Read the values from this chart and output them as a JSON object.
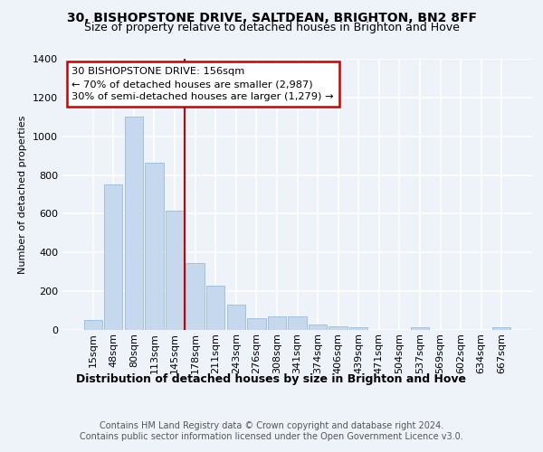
{
  "title1": "30, BISHOPSTONE DRIVE, SALTDEAN, BRIGHTON, BN2 8FF",
  "title2": "Size of property relative to detached houses in Brighton and Hove",
  "xlabel": "Distribution of detached houses by size in Brighton and Hove",
  "ylabel": "Number of detached properties",
  "footer1": "Contains HM Land Registry data © Crown copyright and database right 2024.",
  "footer2": "Contains public sector information licensed under the Open Government Licence v3.0.",
  "annotation_line1": "30 BISHOPSTONE DRIVE: 156sqm",
  "annotation_line2": "← 70% of detached houses are smaller (2,987)",
  "annotation_line3": "30% of semi-detached houses are larger (1,279) →",
  "bar_color": "#c5d8ed",
  "bar_edge_color": "#8ab4d4",
  "vline_color": "#cc0000",
  "vline_x": 4.5,
  "categories": [
    "15sqm",
    "48sqm",
    "80sqm",
    "113sqm",
    "145sqm",
    "178sqm",
    "211sqm",
    "243sqm",
    "276sqm",
    "308sqm",
    "341sqm",
    "374sqm",
    "406sqm",
    "439sqm",
    "471sqm",
    "504sqm",
    "537sqm",
    "569sqm",
    "602sqm",
    "634sqm",
    "667sqm"
  ],
  "values": [
    50,
    750,
    1100,
    865,
    615,
    345,
    230,
    130,
    62,
    70,
    70,
    28,
    20,
    15,
    0,
    0,
    12,
    0,
    0,
    0,
    15
  ],
  "ylim": [
    0,
    1400
  ],
  "yticks": [
    0,
    200,
    400,
    600,
    800,
    1000,
    1200,
    1400
  ],
  "bg_color": "#eef2f9",
  "grid_color": "#ffffff",
  "title1_fontsize": 10,
  "title2_fontsize": 9,
  "ylabel_fontsize": 8,
  "xlabel_fontsize": 9,
  "tick_fontsize": 8,
  "footer_fontsize": 7
}
